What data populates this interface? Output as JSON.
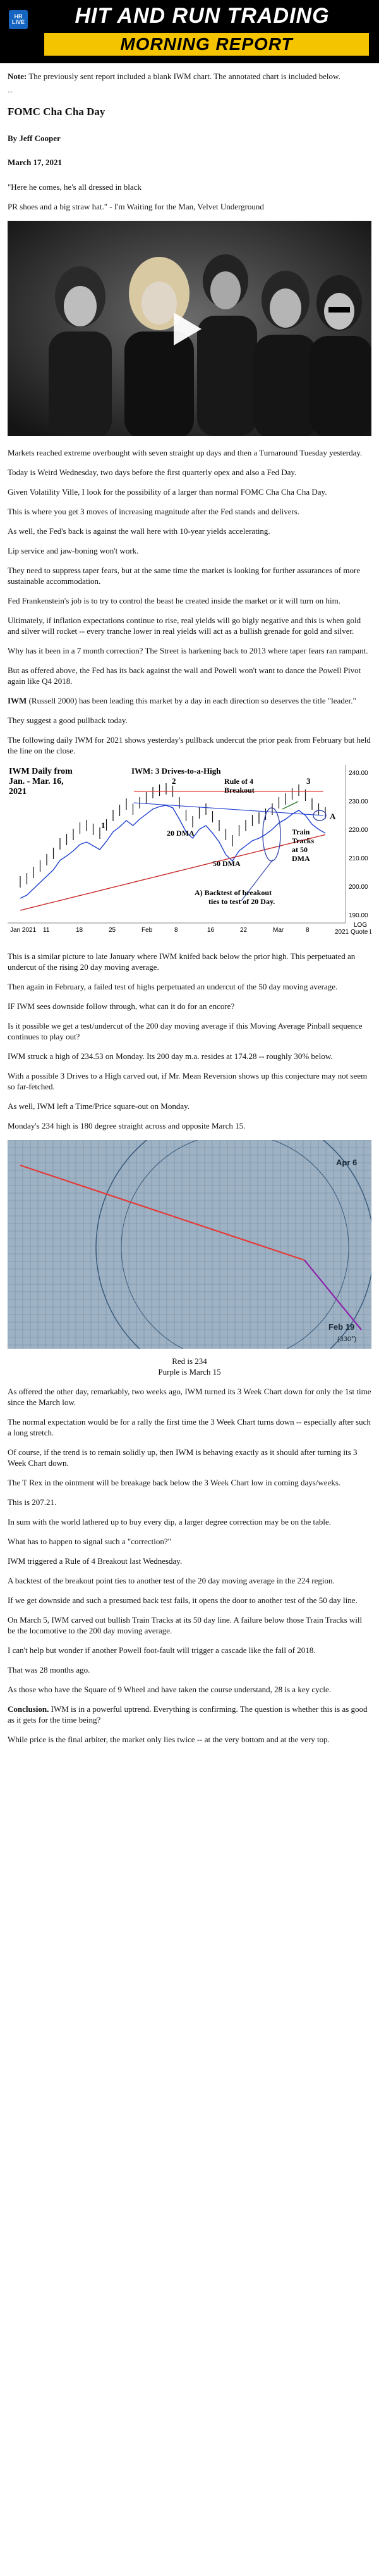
{
  "header": {
    "logo_line1": "HR",
    "logo_line2": "LIVE",
    "title": "HIT AND RUN TRADING",
    "subtitle": "MORNING REPORT"
  },
  "note": {
    "label": "Note:",
    "text": " The previously sent report included a blank IWM chart. The annotated chart is included below."
  },
  "ellipsis": "...",
  "article": {
    "title": "FOMC Cha Cha Day",
    "byline": "By Jeff Cooper",
    "date": "March 17, 2021",
    "quote1": "\"Here he comes, he's all dressed in black",
    "quote2": "PR shoes and a big straw hat.\" - I'm Waiting for the Man, Velvet Underground",
    "paragraphs_a": [
      "Markets reached extreme overbought with seven straight up days and then a Turnaround Tuesday yesterday.",
      "Today is Weird Wednesday, two days before the first quarterly opex and also a Fed Day.",
      "Given Volatility Ville, I look for the possibility of a larger than normal FOMC Cha Cha Cha Day.",
      "This is where you get 3 moves of increasing magnitude after the Fed stands and delivers.",
      "As well, the Fed's back is against the wall here with 10-year yields accelerating.",
      "Lip service and jaw-boning won't work.",
      "They need to suppress taper fears, but at the same time the market is looking for further assurances of more sustainable accommodation.",
      "Fed Frankenstein's job is to try to control the beast he created inside the market or it will turn on him.",
      "Ultimately, if inflation expectations continue to rise, real yields will go bigly negative and this is when gold and silver will rocket -- every tranche lower in real yields will act as a bullish grenade for gold and silver.",
      "Why has it been in a 7 month correction? The Street is harkening back to 2013 where taper fears ran rampant.",
      "But as offered above, the Fed has its back against the wall and Powell won't want to dance the Powell Pivot again like Q4 2018."
    ],
    "iwm_label": "IWM",
    "iwm_text": " (Russell 2000) has been leading this market by a day in each direction so deserves the title \"leader.\"",
    "paragraphs_b": [
      "They suggest a good pullback today.",
      "The following daily IWM for 2021 shows yesterday's pullback undercut the prior peak from February but held the line on the close."
    ],
    "paragraphs_c": [
      "This is a similar picture to late January where IWM knifed back below the prior high. This perpetuated an undercut of the rising 20 day moving average.",
      "Then again in February, a failed test of highs perpetuated an undercut of the 50 day moving average.",
      "IF IWM sees downside follow through, what can it do for an encore?",
      "Is it possible we get a test/undercut of the 200 day moving average if this Moving Average Pinball sequence continues to play out?",
      "IWM struck a high of 234.53 on Monday. Its 200 day m.a. resides at 174.28 -- roughly 30% below.",
      "With a possible 3 Drives to a High carved out, if Mr. Mean Reversion shows up this conjecture may not seem so far-fetched.",
      "As well, IWM left a Time/Price square-out on Monday.",
      "Monday's 234 high is 180 degree straight across and opposite March 15."
    ],
    "caption1": "Red is 234",
    "caption2": "Purple is March 15",
    "paragraphs_d": [
      "As offered the other day, remarkably, two weeks ago, IWM turned its 3 Week Chart down for only the 1st time since the March low.",
      "The normal expectation would be for a rally the first time the 3 Week Chart turns down -- especially after such a long stretch.",
      "Of course, if the trend is to remain solidly up, then IWM is behaving exactly as it should after turning its 3 Week Chart down.",
      "The T Rex in the ointment will be breakage back below the 3 Week Chart low in coming days/weeks.",
      "This is 207.21.",
      "In sum with the world lathered up to buy every dip, a larger degree correction may be on the table.",
      "What has to happen to signal such a \"correction?\"",
      "IWM triggered a Rule of 4 Breakout last Wednesday.",
      "A backtest of the breakout point ties to another test of the 20 day moving average in the 224 region.",
      "If we get downside and such a presumed back test fails, it opens the door to another test of the 50 day line.",
      "On March 5, IWM carved out bullish Train Tracks at its 50 day line. A failure below those Train Tracks will be the locomotive to the 200 day moving average.",
      "I can't help but wonder if another Powell foot-fault will trigger a cascade like the fall of 2018.",
      "That was 28 months ago.",
      "As those who have the Square of 9 Wheel and have taken the course understand, 28 is a key cycle."
    ],
    "conclusion_label": "Conclusion.",
    "conclusion_text": " IWM is in a powerful uptrend. Everything is confirming. The question is whether this is as good as it gets for the time being?",
    "last_paragraph": "While price is the final arbiter, the market only lies twice -- at the very bottom and at the very top."
  },
  "chart": {
    "title_line1": "IWM Daily from",
    "title_line2": "Jan. - Mar. 16,",
    "title_line3": "2021",
    "headline": "IWM: 3 Drives-to-a-High",
    "ann_rule4_1": "Rule of 4",
    "ann_rule4_2": "Breakout",
    "ann_20dma": "20 DMA",
    "ann_50dma": "50 DMA",
    "ann_train_1": "Train",
    "ann_train_2": "Tracks",
    "ann_train_3": "at 50",
    "ann_train_4": "DMA",
    "ann_backtest_1": "A) Backtest of breakout",
    "ann_backtest_2": "ties to test of 20 Day.",
    "drive1": "1",
    "drive2": "2",
    "drive3": "3",
    "point_a": "A",
    "yaxis_ticks": [
      "240.00",
      "230.00",
      "220.00",
      "210.00",
      "200.00",
      "190.00"
    ],
    "log_label": "LOG",
    "xaxis_ticks": [
      "Jan 2021",
      "11",
      "18",
      "25",
      "Feb",
      "8",
      "16",
      "22",
      "Mar",
      "8"
    ],
    "credit": "2021 Quote LLC",
    "colors": {
      "price": "#111111",
      "dma20": "#1e3fd1",
      "dma50": "#c62828",
      "breakout": "#e53935",
      "circle": "#3949ab",
      "arrow": "#2e7d32"
    }
  },
  "wheel": {
    "label_apr": "Apr 6",
    "label_feb": "Feb 19",
    "label_deg": "(330°)",
    "colors": {
      "red_line": "#e53935",
      "purple_line": "#8e24aa"
    }
  }
}
